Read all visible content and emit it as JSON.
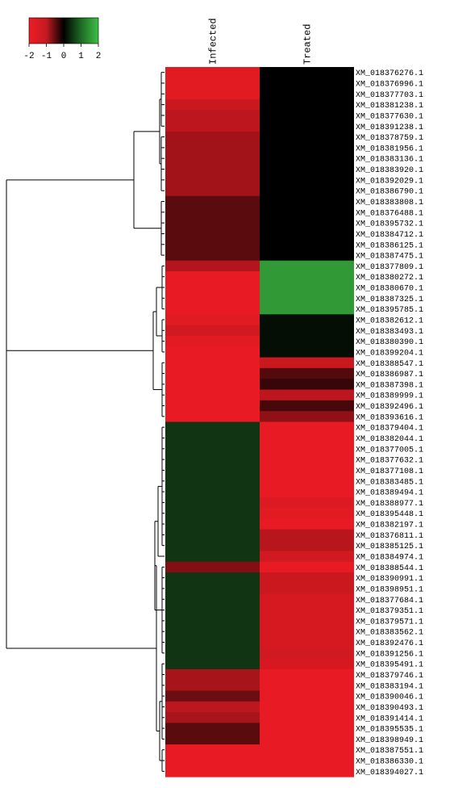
{
  "chart_data": {
    "type": "heatmap",
    "title": "",
    "xlabel": "",
    "ylabel": "",
    "columns": [
      "Infected",
      "Treated"
    ],
    "rows": [
      {
        "label": "XM_018376276.1",
        "values": [
          -1.9,
          0.0
        ]
      },
      {
        "label": "XM_018376996.1",
        "values": [
          -1.9,
          0.0
        ]
      },
      {
        "label": "XM_018377703.1",
        "values": [
          -1.9,
          0.0
        ]
      },
      {
        "label": "XM_018381238.1",
        "values": [
          -1.7,
          0.0
        ]
      },
      {
        "label": "XM_018377630.1",
        "values": [
          -1.6,
          0.0
        ]
      },
      {
        "label": "XM_018391238.1",
        "values": [
          -1.6,
          0.0
        ]
      },
      {
        "label": "XM_018378759.1",
        "values": [
          -1.35,
          0.0
        ]
      },
      {
        "label": "XM_018381956.1",
        "values": [
          -1.35,
          0.0
        ]
      },
      {
        "label": "XM_018383136.1",
        "values": [
          -1.35,
          0.0
        ]
      },
      {
        "label": "XM_018383920.1",
        "values": [
          -1.35,
          0.0
        ]
      },
      {
        "label": "XM_018392029.1",
        "values": [
          -1.35,
          0.0
        ]
      },
      {
        "label": "XM_018386790.1",
        "values": [
          -1.35,
          0.0
        ]
      },
      {
        "label": "XM_018383808.1",
        "values": [
          -0.75,
          0.0
        ]
      },
      {
        "label": "XM_018376488.1",
        "values": [
          -0.75,
          0.0
        ]
      },
      {
        "label": "XM_018395732.1",
        "values": [
          -0.75,
          0.0
        ]
      },
      {
        "label": "XM_018384712.1",
        "values": [
          -0.75,
          0.0
        ]
      },
      {
        "label": "XM_018386125.1",
        "values": [
          -0.75,
          0.0
        ]
      },
      {
        "label": "XM_018387475.1",
        "values": [
          -0.75,
          0.0
        ]
      },
      {
        "label": "XM_018377809.1",
        "values": [
          -1.5,
          1.6
        ]
      },
      {
        "label": "XM_018380272.1",
        "values": [
          -1.95,
          1.6
        ]
      },
      {
        "label": "XM_018380670.1",
        "values": [
          -1.95,
          1.6
        ]
      },
      {
        "label": "XM_018387325.1",
        "values": [
          -1.95,
          1.6
        ]
      },
      {
        "label": "XM_018395785.1",
        "values": [
          -1.95,
          1.6
        ]
      },
      {
        "label": "XM_018382612.1",
        "values": [
          -1.9,
          0.15
        ]
      },
      {
        "label": "XM_018383493.1",
        "values": [
          -1.75,
          0.15
        ]
      },
      {
        "label": "XM_018380390.1",
        "values": [
          -1.9,
          0.15
        ]
      },
      {
        "label": "XM_018399204.1",
        "values": [
          -1.95,
          0.15
        ]
      },
      {
        "label": "XM_018388547.1",
        "values": [
          -1.95,
          -1.7
        ]
      },
      {
        "label": "XM_018386987.1",
        "values": [
          -1.95,
          -0.7
        ]
      },
      {
        "label": "XM_018387398.1",
        "values": [
          -1.95,
          -0.45
        ]
      },
      {
        "label": "XM_018389999.1",
        "values": [
          -1.95,
          -1.6
        ]
      },
      {
        "label": "XM_018392496.1",
        "values": [
          -1.95,
          -0.6
        ]
      },
      {
        "label": "XM_018393616.1",
        "values": [
          -1.95,
          -1.2
        ]
      },
      {
        "label": "XM_018379404.1",
        "values": [
          0.55,
          -1.95
        ]
      },
      {
        "label": "XM_018382044.1",
        "values": [
          0.55,
          -1.95
        ]
      },
      {
        "label": "XM_018377005.1",
        "values": [
          0.55,
          -1.95
        ]
      },
      {
        "label": "XM_018377632.1",
        "values": [
          0.55,
          -1.95
        ]
      },
      {
        "label": "XM_018377108.1",
        "values": [
          0.55,
          -1.95
        ]
      },
      {
        "label": "XM_018383485.1",
        "values": [
          0.55,
          -1.95
        ]
      },
      {
        "label": "XM_018389494.1",
        "values": [
          0.55,
          -1.95
        ]
      },
      {
        "label": "XM_018388977.1",
        "values": [
          0.55,
          -1.85
        ]
      },
      {
        "label": "XM_018395448.1",
        "values": [
          0.55,
          -1.9
        ]
      },
      {
        "label": "XM_018382197.1",
        "values": [
          0.55,
          -1.95
        ]
      },
      {
        "label": "XM_018376811.1",
        "values": [
          0.55,
          -1.55
        ]
      },
      {
        "label": "XM_018385125.1",
        "values": [
          0.55,
          -1.55
        ]
      },
      {
        "label": "XM_018384974.1",
        "values": [
          0.55,
          -1.75
        ]
      },
      {
        "label": "XM_018388544.1",
        "values": [
          -1.1,
          -1.95
        ]
      },
      {
        "label": "XM_018390991.1",
        "values": [
          0.55,
          -1.7
        ]
      },
      {
        "label": "XM_018398951.1",
        "values": [
          0.55,
          -1.7
        ]
      },
      {
        "label": "XM_018377684.1",
        "values": [
          0.55,
          -1.8
        ]
      },
      {
        "label": "XM_018379351.1",
        "values": [
          0.55,
          -1.8
        ]
      },
      {
        "label": "XM_018379571.1",
        "values": [
          0.55,
          -1.8
        ]
      },
      {
        "label": "XM_018383562.1",
        "values": [
          0.55,
          -1.8
        ]
      },
      {
        "label": "XM_018392476.1",
        "values": [
          0.55,
          -1.8
        ]
      },
      {
        "label": "XM_018391256.1",
        "values": [
          0.55,
          -1.75
        ]
      },
      {
        "label": "XM_018395491.1",
        "values": [
          0.55,
          -1.8
        ]
      },
      {
        "label": "XM_018379746.1",
        "values": [
          -1.4,
          -1.95
        ]
      },
      {
        "label": "XM_018383194.1",
        "values": [
          -1.4,
          -1.95
        ]
      },
      {
        "label": "XM_018390046.1",
        "values": [
          -0.9,
          -1.95
        ]
      },
      {
        "label": "XM_018390493.1",
        "values": [
          -1.6,
          -1.95
        ]
      },
      {
        "label": "XM_018391414.1",
        "values": [
          -1.4,
          -1.95
        ]
      },
      {
        "label": "XM_018395535.1",
        "values": [
          -0.75,
          -1.95
        ]
      },
      {
        "label": "XM_018398949.1",
        "values": [
          -0.75,
          -1.95
        ]
      },
      {
        "label": "XM_018387551.1",
        "values": [
          -1.95,
          -1.95
        ]
      },
      {
        "label": "XM_018386330.1",
        "values": [
          -1.95,
          -1.95
        ]
      },
      {
        "label": "XM_018394027.1",
        "values": [
          -1.95,
          -1.95
        ]
      }
    ],
    "color_key": {
      "ticks": [
        "-2",
        "-1",
        "0",
        "1",
        "2"
      ],
      "range": [
        -2,
        2
      ],
      "low_color": "#ee1c25",
      "mid_color": "#000000",
      "high_color": "#3fbf45"
    },
    "dendrogram_color": "#000000",
    "legend_position": "top-left",
    "grid": false
  }
}
